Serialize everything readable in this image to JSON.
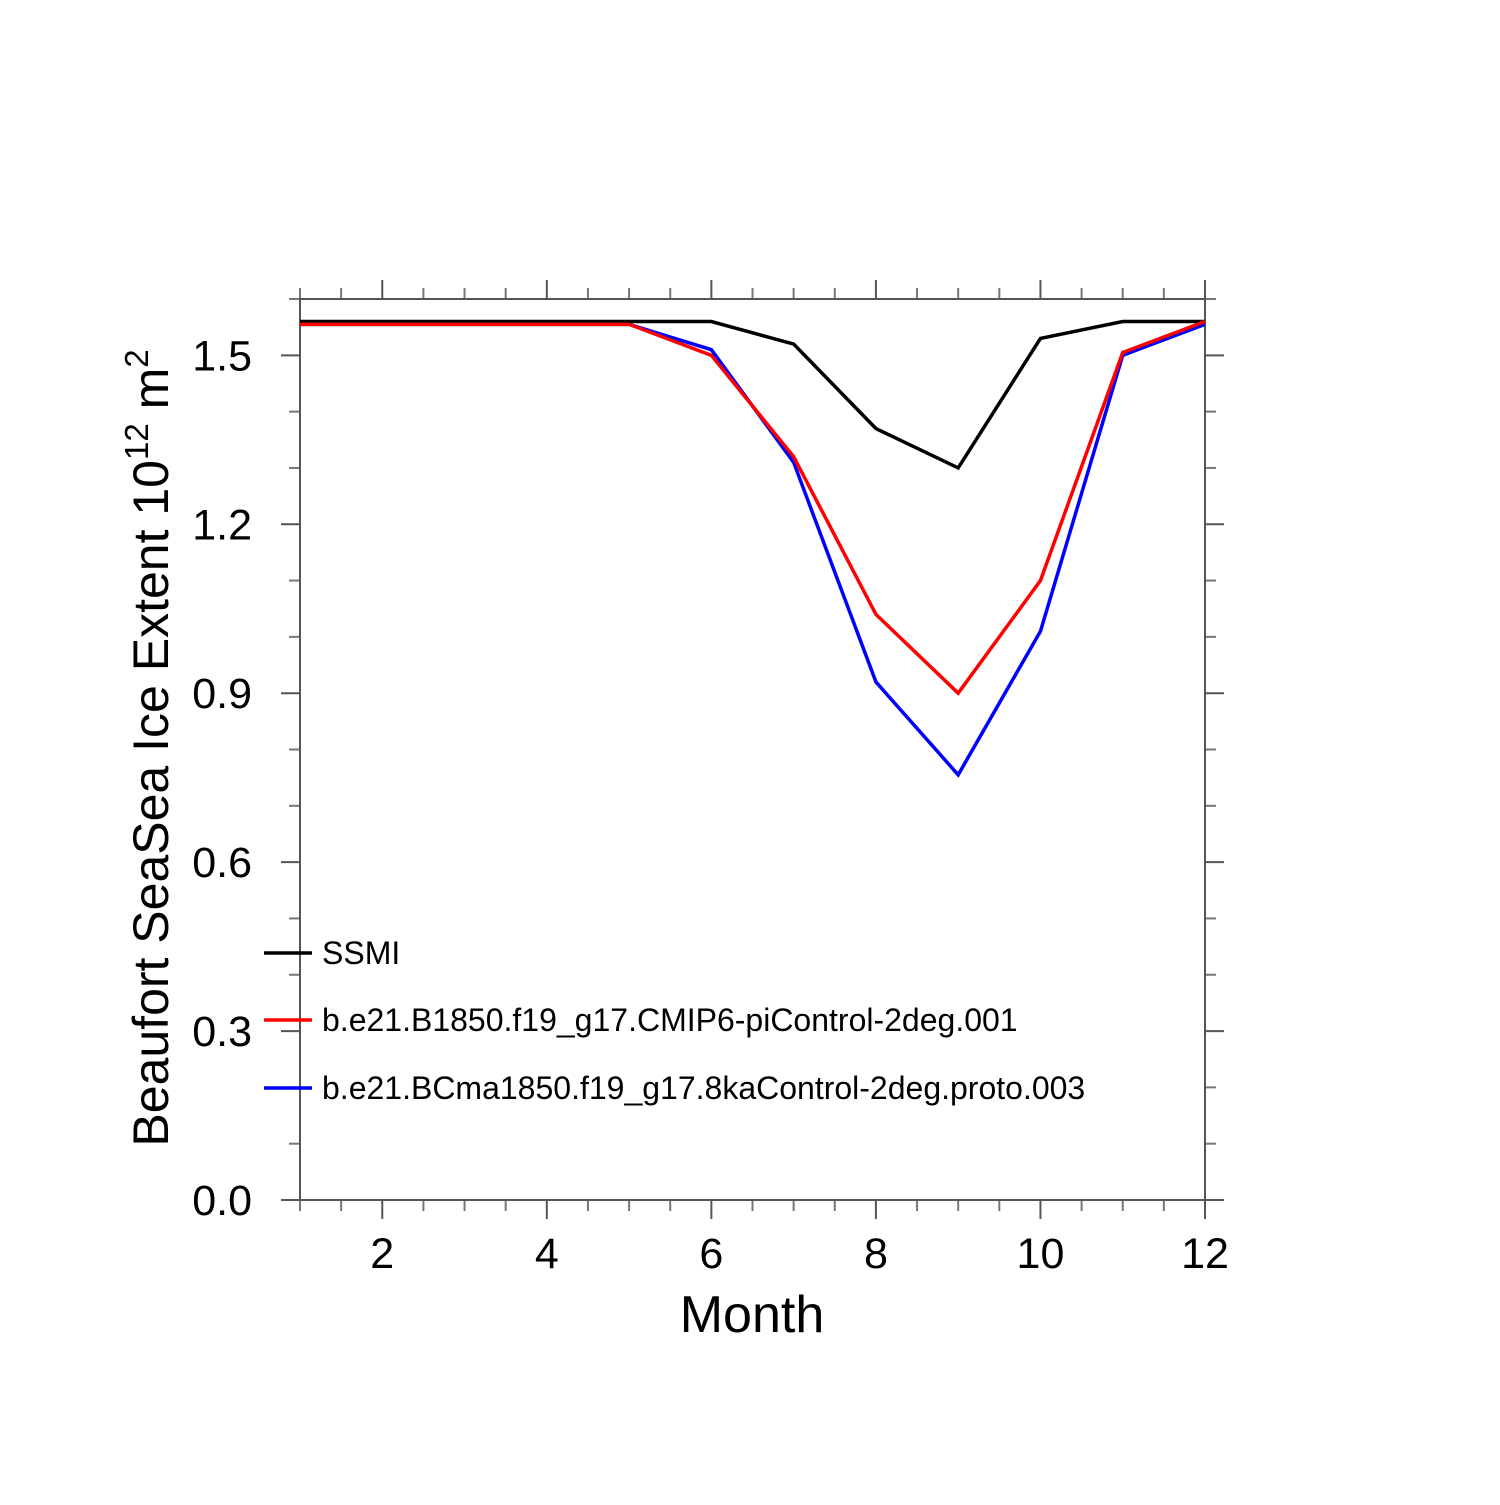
{
  "chart_data": {
    "type": "line",
    "x": [
      1,
      2,
      3,
      4,
      5,
      6,
      7,
      8,
      9,
      10,
      11,
      12
    ],
    "series": [
      {
        "name": "SSMI",
        "color": "#000000",
        "values": [
          1.56,
          1.56,
          1.56,
          1.56,
          1.56,
          1.56,
          1.52,
          1.37,
          1.3,
          1.53,
          1.56,
          1.56
        ]
      },
      {
        "name": "b.e21.B1850.f19_g17.CMIP6-piControl-2deg.001",
        "color": "#ff0000",
        "values": [
          1.555,
          1.555,
          1.555,
          1.555,
          1.555,
          1.5,
          1.32,
          1.04,
          0.9,
          1.1,
          1.505,
          1.56
        ]
      },
      {
        "name": "b.e21.BCma1850.f19_g17.8kaControl-2deg.proto.003",
        "color": "#0000ff",
        "values": [
          1.555,
          1.555,
          1.555,
          1.555,
          1.555,
          1.51,
          1.31,
          0.92,
          0.755,
          1.01,
          1.5,
          1.555
        ]
      }
    ],
    "xlabel": "Month",
    "ylabel": "Beaufort SeaSea Ice Extent 10^12 m^2",
    "ylabel_segments": [
      {
        "text": "Beaufort SeaSea Ice Extent 10"
      },
      {
        "text": "12",
        "superscript": true
      },
      {
        "text": " m"
      },
      {
        "text": "2",
        "superscript": true
      }
    ],
    "xlim": [
      1,
      12
    ],
    "ylim": [
      0.0,
      1.6
    ],
    "x_major_ticks": [
      {
        "value": 2,
        "label": "2"
      },
      {
        "value": 4,
        "label": "4"
      },
      {
        "value": 6,
        "label": "6"
      },
      {
        "value": 8,
        "label": "8"
      },
      {
        "value": 10,
        "label": "10"
      },
      {
        "value": 12,
        "label": "12"
      }
    ],
    "x_minor_step": 0.5,
    "y_major_ticks": [
      {
        "value": 0.0,
        "label": "0.0"
      },
      {
        "value": 0.3,
        "label": "0.3"
      },
      {
        "value": 0.6,
        "label": "0.6"
      },
      {
        "value": 0.9,
        "label": "0.9"
      },
      {
        "value": 1.2,
        "label": "1.2"
      },
      {
        "value": 1.5,
        "label": "1.5"
      }
    ],
    "y_minor_step": 0.1,
    "grid": false,
    "legend_position": "inside-lower-left"
  },
  "legend": {
    "items": [
      {
        "label": "SSMI",
        "color": "#000000"
      },
      {
        "label": "b.e21.B1850.f19_g17.CMIP6-piControl-2deg.001",
        "color": "#ff0000"
      },
      {
        "label": "b.e21.BCma1850.f19_g17.8kaControl-2deg.proto.003",
        "color": "#0000ff"
      }
    ]
  },
  "colors": {
    "axis": "#555555",
    "minor_tick": "#777777",
    "text": "#000000",
    "background": "#ffffff"
  }
}
